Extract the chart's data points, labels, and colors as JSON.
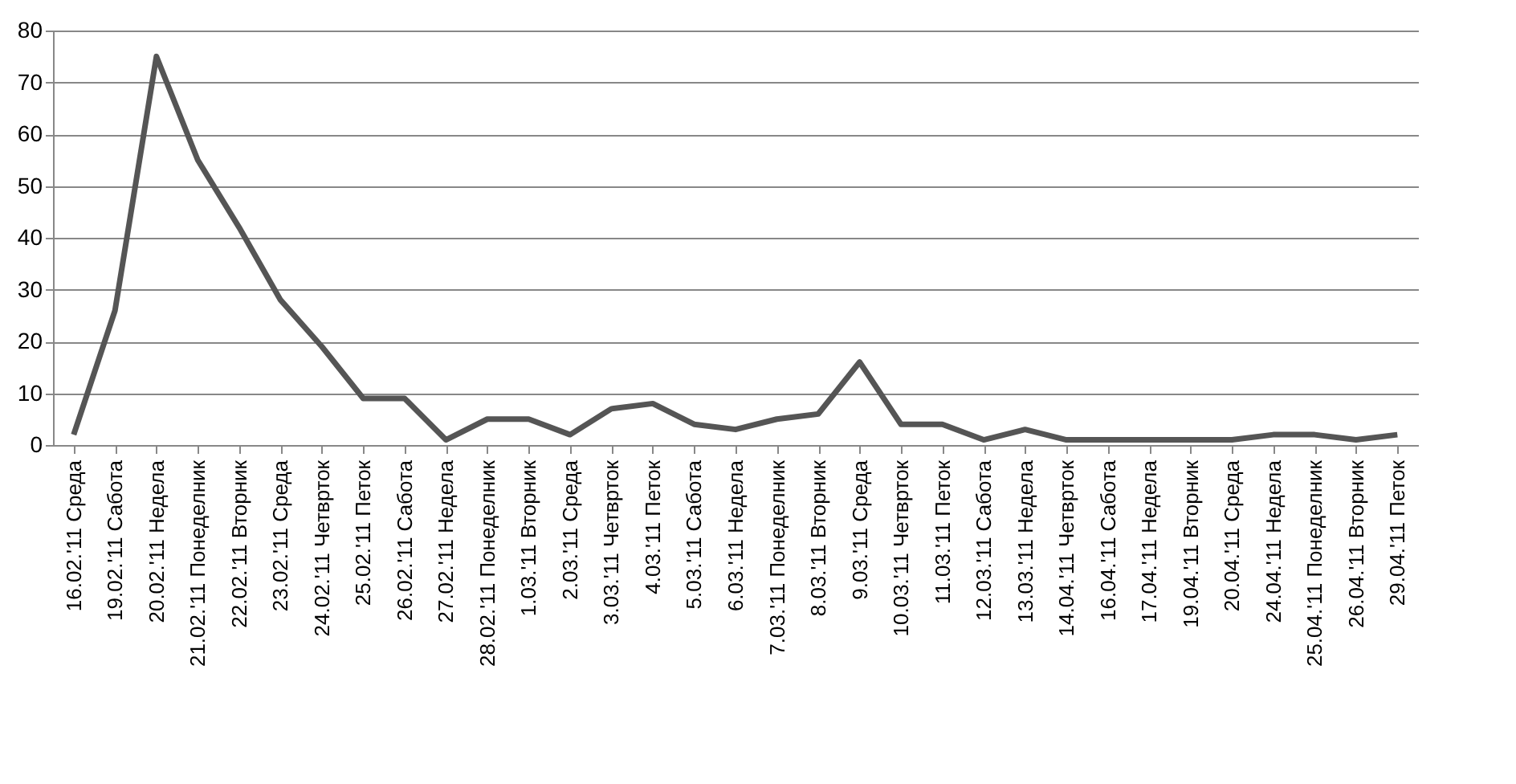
{
  "chart_data": {
    "type": "line",
    "categories": [
      "16.02.'11 Среда",
      "19.02.'11 Сабота",
      "20.02.'11 Недела",
      "21.02.'11 Понеделник",
      "22.02.'11 Вторник",
      "23.02.'11 Среда",
      "24.02.'11 Четврток",
      "25.02.'11 Петок",
      "26.02.'11 Сабота",
      "27.02.'11 Недела",
      "28.02.'11 Понеделник",
      "1.03.'11 Вторник",
      "2.03.'11 Среда",
      "3.03.'11 Четврток",
      "4.03.'11 Петок",
      "5.03.'11 Сабота",
      "6.03.'11 Недела",
      "7.03.'11 Понеделник",
      "8.03.'11 Вторник",
      "9.03.'11 Среда",
      "10.03.'11 Четврток",
      "11.03.'11 Петок",
      "12.03.'11 Сабота",
      "13.03.'11 Недела",
      "14.04.'11 Четврток",
      "16.04.'11 Сабота",
      "17.04.'11 Недела",
      "19.04.'11 Вторник",
      "20.04.'11 Среда",
      "24.04.'11 Недела",
      "25.04.'11 Понеделник",
      "26.04.'11 Вторник",
      "29.04.'11 Петок"
    ],
    "series": [
      {
        "color": "#555555",
        "values": [
          2,
          26,
          75,
          55,
          42,
          28,
          19,
          9,
          9,
          1,
          5,
          5,
          2,
          7,
          8,
          4,
          3,
          5,
          6,
          16,
          4,
          4,
          1,
          3,
          1,
          1,
          1,
          1,
          1,
          2,
          2,
          1,
          2
        ]
      }
    ],
    "ylim": [
      0,
      80
    ],
    "yticks": [
      0,
      10,
      20,
      30,
      40,
      50,
      60,
      70,
      80
    ],
    "grid": "y",
    "marker": "none",
    "line_style": "solid"
  }
}
